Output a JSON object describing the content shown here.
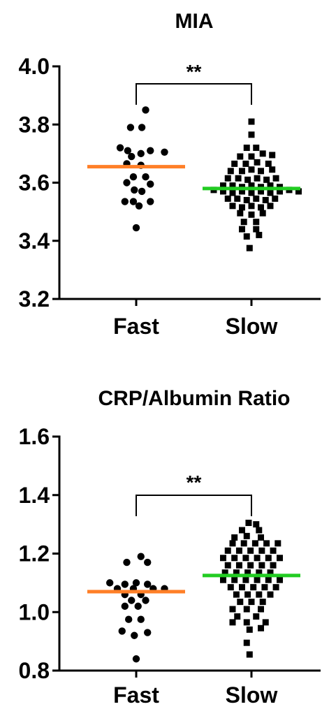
{
  "chart_data": [
    {
      "type": "scatter",
      "title": "MIA",
      "categories": [
        "Fast",
        "Slow"
      ],
      "ylim": [
        3.2,
        4.0
      ],
      "yticks": [
        3.2,
        3.4,
        3.6,
        3.8,
        4.0
      ],
      "ytick_labels": [
        "3.2",
        "3.4",
        "3.6",
        "3.8",
        "4.0"
      ],
      "significance": "**",
      "series": [
        {
          "name": "Fast",
          "marker": "circle",
          "mean": 3.655,
          "mean_color": "#FF7F27",
          "points": [
            {
              "x": 0.1,
              "y": 3.85
            },
            {
              "x": -0.06,
              "y": 3.79
            },
            {
              "x": 0.06,
              "y": 3.79
            },
            {
              "x": -0.17,
              "y": 3.72
            },
            {
              "x": -0.09,
              "y": 3.71
            },
            {
              "x": 0.15,
              "y": 3.71
            },
            {
              "x": 0.3,
              "y": 3.705
            },
            {
              "x": -0.05,
              "y": 3.69
            },
            {
              "x": 0.05,
              "y": 3.7
            },
            {
              "x": -0.1,
              "y": 3.665
            },
            {
              "x": 0.05,
              "y": 3.66
            },
            {
              "x": -0.03,
              "y": 3.62
            },
            {
              "x": 0.1,
              "y": 3.62
            },
            {
              "x": -0.1,
              "y": 3.6
            },
            {
              "x": 0.15,
              "y": 3.595
            },
            {
              "x": -0.02,
              "y": 3.575
            },
            {
              "x": 0.06,
              "y": 3.57
            },
            {
              "x": -0.12,
              "y": 3.535
            },
            {
              "x": -0.03,
              "y": 3.535
            },
            {
              "x": 0.15,
              "y": 3.535
            },
            {
              "x": 0.03,
              "y": 3.52
            },
            {
              "x": 0.0,
              "y": 3.445
            }
          ]
        },
        {
          "name": "Slow",
          "marker": "square",
          "mean": 3.58,
          "mean_color": "#22CC22",
          "points": [
            {
              "x": 0.0,
              "y": 3.81
            },
            {
              "x": 0.0,
              "y": 3.765
            },
            {
              "x": -0.05,
              "y": 3.72
            },
            {
              "x": 0.05,
              "y": 3.72
            },
            {
              "x": -0.12,
              "y": 3.69
            },
            {
              "x": 0.0,
              "y": 3.69
            },
            {
              "x": 0.12,
              "y": 3.7
            },
            {
              "x": 0.22,
              "y": 3.695
            },
            {
              "x": -0.18,
              "y": 3.665
            },
            {
              "x": -0.06,
              "y": 3.665
            },
            {
              "x": 0.06,
              "y": 3.67
            },
            {
              "x": 0.18,
              "y": 3.665
            },
            {
              "x": -0.22,
              "y": 3.64
            },
            {
              "x": -0.1,
              "y": 3.64
            },
            {
              "x": 0.0,
              "y": 3.645
            },
            {
              "x": 0.1,
              "y": 3.64
            },
            {
              "x": 0.22,
              "y": 3.645
            },
            {
              "x": -0.25,
              "y": 3.615
            },
            {
              "x": -0.14,
              "y": 3.615
            },
            {
              "x": -0.04,
              "y": 3.61
            },
            {
              "x": 0.06,
              "y": 3.615
            },
            {
              "x": 0.16,
              "y": 3.61
            },
            {
              "x": 0.26,
              "y": 3.615
            },
            {
              "x": -0.3,
              "y": 3.59
            },
            {
              "x": -0.2,
              "y": 3.59
            },
            {
              "x": -0.1,
              "y": 3.585
            },
            {
              "x": 0.0,
              "y": 3.59
            },
            {
              "x": 0.1,
              "y": 3.585
            },
            {
              "x": 0.2,
              "y": 3.59
            },
            {
              "x": 0.3,
              "y": 3.585
            },
            {
              "x": -0.4,
              "y": 3.575
            },
            {
              "x": -0.3,
              "y": 3.57
            },
            {
              "x": -0.2,
              "y": 3.565
            },
            {
              "x": -0.1,
              "y": 3.57
            },
            {
              "x": 0.0,
              "y": 3.565
            },
            {
              "x": 0.1,
              "y": 3.57
            },
            {
              "x": 0.2,
              "y": 3.565
            },
            {
              "x": 0.3,
              "y": 3.57
            },
            {
              "x": 0.4,
              "y": 3.575
            },
            {
              "x": 0.5,
              "y": 3.57
            },
            {
              "x": -0.25,
              "y": 3.545
            },
            {
              "x": -0.15,
              "y": 3.545
            },
            {
              "x": -0.05,
              "y": 3.54
            },
            {
              "x": 0.05,
              "y": 3.545
            },
            {
              "x": 0.15,
              "y": 3.54
            },
            {
              "x": 0.25,
              "y": 3.545
            },
            {
              "x": -0.2,
              "y": 3.52
            },
            {
              "x": -0.1,
              "y": 3.515
            },
            {
              "x": 0.0,
              "y": 3.52
            },
            {
              "x": 0.1,
              "y": 3.515
            },
            {
              "x": 0.2,
              "y": 3.52
            },
            {
              "x": -0.12,
              "y": 3.495
            },
            {
              "x": 0.0,
              "y": 3.49
            },
            {
              "x": 0.12,
              "y": 3.495
            },
            {
              "x": -0.08,
              "y": 3.465
            },
            {
              "x": 0.05,
              "y": 3.465
            },
            {
              "x": -0.1,
              "y": 3.44
            },
            {
              "x": 0.05,
              "y": 3.44
            },
            {
              "x": -0.05,
              "y": 3.415
            },
            {
              "x": 0.08,
              "y": 3.42
            },
            {
              "x": -0.02,
              "y": 3.375
            }
          ]
        }
      ]
    },
    {
      "type": "scatter",
      "title": "CRP/Albumin Ratio",
      "categories": [
        "Fast",
        "Slow"
      ],
      "ylim": [
        0.8,
        1.6
      ],
      "yticks": [
        0.8,
        1.0,
        1.2,
        1.4,
        1.6
      ],
      "ytick_labels": [
        "0.8",
        "1.0",
        "1.2",
        "1.4",
        "1.6"
      ],
      "significance": "**",
      "series": [
        {
          "name": "Fast",
          "marker": "circle",
          "mean": 1.07,
          "mean_color": "#FF7F27",
          "points": [
            {
              "x": 0.05,
              "y": 1.19
            },
            {
              "x": -0.1,
              "y": 1.17
            },
            {
              "x": 0.12,
              "y": 1.17
            },
            {
              "x": -0.28,
              "y": 1.1
            },
            {
              "x": -0.12,
              "y": 1.095
            },
            {
              "x": 0.0,
              "y": 1.1
            },
            {
              "x": 0.12,
              "y": 1.095
            },
            {
              "x": -0.2,
              "y": 1.08
            },
            {
              "x": -0.03,
              "y": 1.08
            },
            {
              "x": 0.18,
              "y": 1.08
            },
            {
              "x": 0.3,
              "y": 1.08
            },
            {
              "x": -0.12,
              "y": 1.06
            },
            {
              "x": 0.05,
              "y": 1.06
            },
            {
              "x": -0.05,
              "y": 1.04
            },
            {
              "x": 0.1,
              "y": 1.04
            },
            {
              "x": -0.12,
              "y": 1.02
            },
            {
              "x": 0.02,
              "y": 1.02
            },
            {
              "x": -0.08,
              "y": 0.975
            },
            {
              "x": 0.05,
              "y": 0.975
            },
            {
              "x": -0.15,
              "y": 0.935
            },
            {
              "x": 0.12,
              "y": 0.93
            },
            {
              "x": -0.02,
              "y": 0.92
            },
            {
              "x": 0.0,
              "y": 0.84
            }
          ]
        },
        {
          "name": "Slow",
          "marker": "square",
          "mean": 1.125,
          "mean_color": "#22CC22",
          "points": [
            {
              "x": -0.03,
              "y": 1.305
            },
            {
              "x": 0.05,
              "y": 1.3
            },
            {
              "x": -0.1,
              "y": 1.28
            },
            {
              "x": 0.08,
              "y": 1.28
            },
            {
              "x": -0.18,
              "y": 1.255
            },
            {
              "x": -0.05,
              "y": 1.26
            },
            {
              "x": 0.1,
              "y": 1.255
            },
            {
              "x": -0.2,
              "y": 1.235
            },
            {
              "x": -0.08,
              "y": 1.235
            },
            {
              "x": 0.04,
              "y": 1.235
            },
            {
              "x": 0.16,
              "y": 1.235
            },
            {
              "x": 0.28,
              "y": 1.235
            },
            {
              "x": -0.25,
              "y": 1.21
            },
            {
              "x": -0.13,
              "y": 1.21
            },
            {
              "x": -0.01,
              "y": 1.21
            },
            {
              "x": 0.11,
              "y": 1.21
            },
            {
              "x": 0.23,
              "y": 1.21
            },
            {
              "x": -0.3,
              "y": 1.185
            },
            {
              "x": -0.18,
              "y": 1.185
            },
            {
              "x": -0.06,
              "y": 1.185
            },
            {
              "x": 0.06,
              "y": 1.185
            },
            {
              "x": 0.18,
              "y": 1.185
            },
            {
              "x": 0.3,
              "y": 1.185
            },
            {
              "x": -0.25,
              "y": 1.16
            },
            {
              "x": -0.13,
              "y": 1.16
            },
            {
              "x": -0.01,
              "y": 1.16
            },
            {
              "x": 0.11,
              "y": 1.16
            },
            {
              "x": 0.23,
              "y": 1.16
            },
            {
              "x": -0.28,
              "y": 1.135
            },
            {
              "x": -0.16,
              "y": 1.135
            },
            {
              "x": -0.04,
              "y": 1.135
            },
            {
              "x": 0.08,
              "y": 1.135
            },
            {
              "x": 0.2,
              "y": 1.135
            },
            {
              "x": -0.3,
              "y": 1.11
            },
            {
              "x": -0.18,
              "y": 1.11
            },
            {
              "x": -0.06,
              "y": 1.11
            },
            {
              "x": 0.06,
              "y": 1.11
            },
            {
              "x": 0.18,
              "y": 1.11
            },
            {
              "x": 0.3,
              "y": 1.11
            },
            {
              "x": -0.22,
              "y": 1.085
            },
            {
              "x": -0.1,
              "y": 1.085
            },
            {
              "x": 0.02,
              "y": 1.085
            },
            {
              "x": 0.14,
              "y": 1.085
            },
            {
              "x": 0.26,
              "y": 1.085
            },
            {
              "x": -0.16,
              "y": 1.06
            },
            {
              "x": -0.04,
              "y": 1.06
            },
            {
              "x": 0.08,
              "y": 1.06
            },
            {
              "x": 0.2,
              "y": 1.06
            },
            {
              "x": -0.12,
              "y": 1.035
            },
            {
              "x": 0.0,
              "y": 1.035
            },
            {
              "x": 0.12,
              "y": 1.035
            },
            {
              "x": -0.2,
              "y": 1.01
            },
            {
              "x": -0.05,
              "y": 1.01
            },
            {
              "x": 0.1,
              "y": 1.01
            },
            {
              "x": -0.15,
              "y": 0.985
            },
            {
              "x": 0.05,
              "y": 0.985
            },
            {
              "x": -0.2,
              "y": 0.965
            },
            {
              "x": -0.05,
              "y": 0.965
            },
            {
              "x": 0.15,
              "y": 0.965
            },
            {
              "x": -0.02,
              "y": 0.94
            },
            {
              "x": 0.1,
              "y": 0.945
            },
            {
              "x": -0.05,
              "y": 0.895
            },
            {
              "x": -0.02,
              "y": 0.855
            }
          ]
        }
      ]
    }
  ]
}
